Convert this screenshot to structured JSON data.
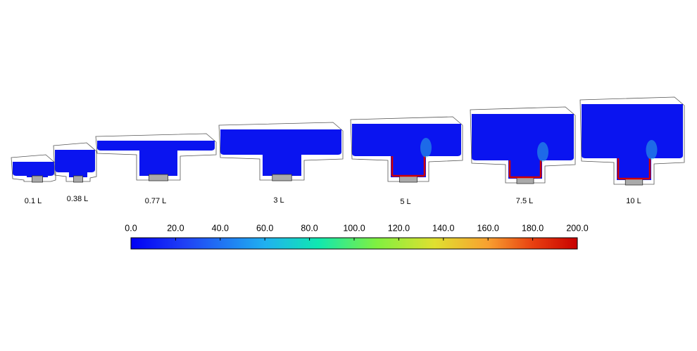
{
  "panels": [
    {
      "label": "0.1 L"
    },
    {
      "label": "0.38 L"
    },
    {
      "label": "0.77 L"
    },
    {
      "label": "3 L"
    },
    {
      "label": "5 L"
    },
    {
      "label": "7.5 L"
    },
    {
      "label": "10 L"
    }
  ],
  "colorbar": {
    "lim": [
      0,
      200
    ],
    "ticks": [
      {
        "value": 0,
        "label": "0.0"
      },
      {
        "value": 20,
        "label": "20.0"
      },
      {
        "value": 40,
        "label": "40.0"
      },
      {
        "value": 60,
        "label": "60.0"
      },
      {
        "value": 80,
        "label": "80.0"
      },
      {
        "value": 100,
        "label": "100.0"
      },
      {
        "value": 120,
        "label": "120.0"
      },
      {
        "value": 140,
        "label": "140.0"
      },
      {
        "value": 160,
        "label": "160.0"
      },
      {
        "value": 180,
        "label": "180.0"
      },
      {
        "value": 200,
        "label": "200.0"
      }
    ]
  }
}
